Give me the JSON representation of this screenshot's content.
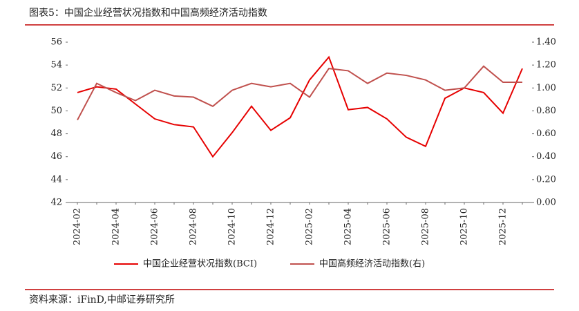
{
  "chart_data": {
    "type": "line",
    "title": "图表5：中国企业经营状况指数和中国高频经济活动指数",
    "source": "资料来源：iFinD,中邮证券研究所",
    "categories": [
      "2024-02",
      null,
      "2024-04",
      null,
      "2024-06",
      null,
      "2024-08",
      null,
      "2024-10",
      null,
      "2024-12",
      null,
      "2025-02",
      null,
      "2025-04",
      null,
      "2025-06",
      null,
      "2025-08",
      null,
      "2025-10",
      null,
      "2025-12",
      null
    ],
    "series": [
      {
        "name": "中国企业经营状况指数(BCI)",
        "color": "#e60000",
        "values": [
          51.6,
          52.1,
          51.9,
          50.6,
          49.3,
          48.8,
          48.6,
          46.0,
          48.1,
          50.4,
          48.3,
          49.4,
          52.7,
          54.7,
          50.1,
          50.3,
          49.3,
          47.7,
          46.9,
          51.1,
          52.0,
          51.6,
          49.8,
          53.7
        ]
      },
      {
        "name": "中国高频经济活动指数(右)",
        "color": "#c0504d",
        "axis": "y2",
        "values": [
          0.72,
          1.04,
          0.96,
          0.89,
          0.98,
          0.93,
          0.92,
          0.84,
          0.98,
          1.04,
          1.01,
          1.04,
          0.92,
          1.17,
          1.15,
          1.04,
          1.13,
          1.11,
          1.07,
          0.98,
          1.0,
          1.19,
          1.05,
          1.05
        ]
      }
    ],
    "ylim": [
      42,
      56
    ],
    "yticks": [
      42,
      44,
      46,
      48,
      50,
      52,
      54,
      56
    ],
    "y2lim": [
      0,
      1.4
    ],
    "y2ticks": [
      {
        "value": 0,
        "label": "0.00"
      },
      {
        "value": 0.2,
        "label": "0.20"
      },
      {
        "value": 0.4,
        "label": "0.40"
      },
      {
        "value": 0.6,
        "label": "0.60"
      },
      {
        "value": 0.8,
        "label": "0.80"
      },
      {
        "value": 1.0,
        "label": "1.00"
      },
      {
        "value": 1.2,
        "label": "1.20"
      },
      {
        "value": 1.4,
        "label": "1.40"
      }
    ],
    "legend": "bottom"
  }
}
